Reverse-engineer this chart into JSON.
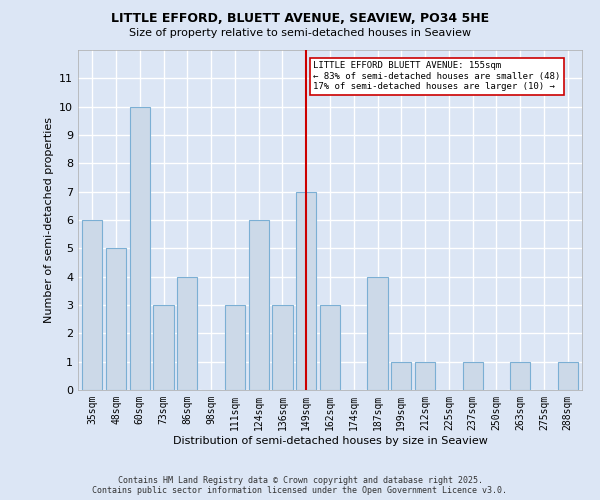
{
  "title": "LITTLE EFFORD, BLUETT AVENUE, SEAVIEW, PO34 5HE",
  "subtitle": "Size of property relative to semi-detached houses in Seaview",
  "xlabel": "Distribution of semi-detached houses by size in Seaview",
  "ylabel": "Number of semi-detached properties",
  "categories": [
    "35sqm",
    "48sqm",
    "60sqm",
    "73sqm",
    "86sqm",
    "98sqm",
    "111sqm",
    "124sqm",
    "136sqm",
    "149sqm",
    "162sqm",
    "174sqm",
    "187sqm",
    "199sqm",
    "212sqm",
    "225sqm",
    "237sqm",
    "250sqm",
    "263sqm",
    "275sqm",
    "288sqm"
  ],
  "values": [
    6,
    5,
    10,
    3,
    4,
    0,
    3,
    6,
    3,
    7,
    3,
    0,
    4,
    1,
    1,
    0,
    1,
    0,
    1,
    0,
    1
  ],
  "bar_color": "#ccd9e8",
  "bar_edgecolor": "#7bafd4",
  "background_color": "#dce6f5",
  "grid_color": "#ffffff",
  "red_line_index": 9,
  "red_line_color": "#cc0000",
  "annotation_text": "LITTLE EFFORD BLUETT AVENUE: 155sqm\n← 83% of semi-detached houses are smaller (48)\n17% of semi-detached houses are larger (10) →",
  "annotation_box_color": "#ffffff",
  "annotation_box_edgecolor": "#cc0000",
  "footer_line1": "Contains HM Land Registry data © Crown copyright and database right 2025.",
  "footer_line2": "Contains public sector information licensed under the Open Government Licence v3.0.",
  "ylim": [
    0,
    12
  ],
  "yticks": [
    0,
    1,
    2,
    3,
    4,
    5,
    6,
    7,
    8,
    9,
    10,
    11
  ]
}
